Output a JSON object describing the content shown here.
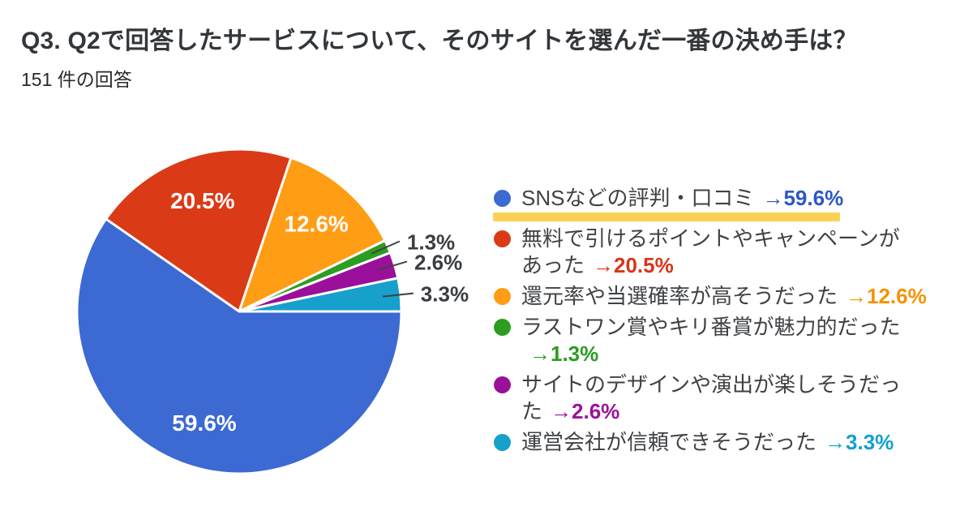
{
  "header": {
    "title": "Q3. Q2で回答したサービスについて、そのサイトを選んだ一番の決め手は？",
    "response_count": "151 件の回答"
  },
  "chart_data": {
    "type": "pie",
    "title": "Q3. Q2で回答したサービスについて、そのサイトを選んだ一番の決め手は？",
    "subtitle": "151 件の回答",
    "unit": "%",
    "start_angle_deg": 0,
    "direction": "clockwise",
    "legend_position": "right",
    "slices": [
      {
        "label": "SNSなどの評判・口コミ",
        "value": 59.6,
        "display": "59.6%",
        "color": "#3C69D2",
        "label_pos": "inside"
      },
      {
        "label": "無料で引けるポイントやキャンペーンがあった",
        "value": 20.5,
        "display": "20.5%",
        "color": "#DB3A17",
        "label_pos": "inside"
      },
      {
        "label": "還元率や当選確率が高そうだった",
        "value": 12.6,
        "display": "12.6%",
        "color": "#FF9D15",
        "label_pos": "inside"
      },
      {
        "label": "ラストワン賞やキリ番賞が魅力的だった",
        "value": 1.3,
        "display": "1.3%",
        "color": "#2C9D20",
        "label_pos": "outside"
      },
      {
        "label": "サイトのデザインや演出が楽しそうだった",
        "value": 2.6,
        "display": "2.6%",
        "color": "#9B109B",
        "label_pos": "outside"
      },
      {
        "label": "運営会社が信頼できそうだった",
        "value": 3.3,
        "display": "3.3%",
        "color": "#16A0CB",
        "label_pos": "outside"
      }
    ]
  },
  "legend": {
    "highlight_color": "#FBD155",
    "items": [
      {
        "label": "SNSなどの評判・口コミ",
        "arrow_text": "→59.6%",
        "dot_color": "#3C69D2",
        "arrow_color": "#2A58C6",
        "highlight": true
      },
      {
        "label": "無料で引けるポイントやキャンペーンが\nあった",
        "arrow_text": "→20.5%",
        "dot_color": "#DB3A17",
        "arrow_color": "#D93418",
        "highlight": false
      },
      {
        "label": "還元率や当選確率が高そうだった",
        "arrow_text": "→12.6%",
        "dot_color": "#FF9D15",
        "arrow_color": "#F39300",
        "highlight": false
      },
      {
        "label": "ラストワン賞やキリ番賞が魅力的だった",
        "arrow_text": "→1.3%",
        "dot_color": "#2C9D20",
        "arrow_color": "#2B9C20",
        "highlight": false
      },
      {
        "label": "サイトのデザインや演出が楽しそうだっ\nた",
        "arrow_text": "→2.6%",
        "dot_color": "#9B109B",
        "arrow_color": "#9B109B",
        "highlight": false
      },
      {
        "label": "運営会社が信頼できそうだった",
        "arrow_text": "→3.3%",
        "dot_color": "#16A0CB",
        "arrow_color": "#12A0CE",
        "highlight": false
      }
    ]
  }
}
